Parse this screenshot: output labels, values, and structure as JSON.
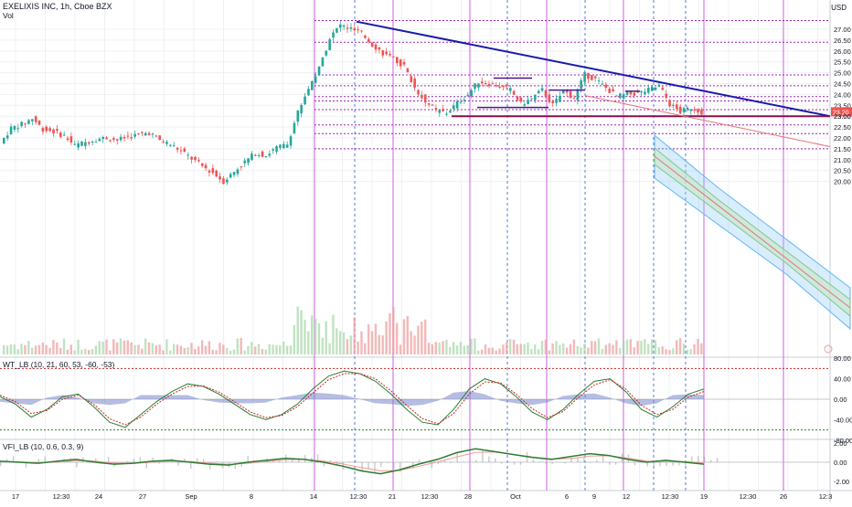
{
  "header": {
    "title": "EXELIXIS INC, 1h, Cboe BZX",
    "volume_label": "Vol",
    "currency": "USD"
  },
  "indicators": {
    "wt_label": "WT_LB (10, 21, 60, 53, -60, -53)",
    "vfi_label": "VFI_LB (10, 0.6, 0.3, 9)"
  },
  "colors": {
    "up": "#26a69a",
    "down": "#ef5350",
    "trend_main": "#1a1aa8",
    "support": "#880e4f",
    "dotted_level": "#9c27b0",
    "vertical_violet": "#d05ce3",
    "vertical_blue": "#5b7bd5",
    "channel_blue": "#90caf9",
    "channel_green": "#c8e6c9",
    "wt_green": "#2e7d32",
    "wt_red": "#c62828",
    "wt_area": "#7986cb",
    "vfi_line": "#2e7d32",
    "vfi_signal": "#ef9a9a",
    "last_price_badge": "#ef5350"
  },
  "chart_data": [
    {
      "type": "line",
      "title": "EXELIXIS INC, 1h, Cboe BZX",
      "series": [
        {
          "name": "",
          "values": [
            21.75,
            22.45,
            22.62,
            22.9,
            22.4,
            22.3,
            22.1,
            21.65,
            21.8,
            21.95,
            22.0,
            21.9,
            22.05,
            22.15,
            22.25,
            21.9,
            21.7,
            21.4,
            21.05,
            20.7,
            20.4,
            20.0,
            20.45,
            20.9,
            21.3,
            21.2,
            21.55,
            21.7,
            23.2,
            24.3,
            25.2,
            26.6,
            27.2,
            27.0,
            26.8,
            26.3,
            25.9,
            25.6,
            25.3,
            24.3,
            23.7,
            23.25,
            23.15,
            23.6,
            24.0,
            24.6,
            24.5,
            24.4,
            24.2,
            23.55,
            23.8,
            24.2,
            23.5,
            24.15,
            23.85,
            24.9,
            24.7,
            24.3,
            23.9,
            24.0,
            24.05,
            24.2,
            24.4,
            23.55,
            23.2,
            23.4,
            23.2
          ]
        }
      ],
      "y_ticks": [
        "27.00",
        "26.50",
        "26.00",
        "25.50",
        "25.00",
        "24.50",
        "24.00",
        "23.50",
        "23.00",
        "22.50",
        "22.00",
        "21.50",
        "21.00",
        "20.50",
        "20.00"
      ],
      "x_ticks": [
        "17",
        "12:30",
        "24",
        "27",
        "Sep",
        "8",
        "14",
        "12:30",
        "21",
        "12:30",
        "28",
        "Oct",
        "6",
        "9",
        "12",
        "12:30",
        "19",
        "12:30",
        "26",
        "12:3"
      ],
      "ylim": [
        19.7,
        27.6
      ],
      "last_price": "23.20",
      "support_level": "23.00",
      "level_lines": [
        27.4,
        26.4,
        24.9,
        24.4,
        23.9,
        23.7,
        23.3,
        22.6,
        22.2,
        21.5
      ],
      "grid": true
    },
    {
      "type": "line",
      "title": "WT_LB (10, 21, 60, 53, -60, -53)",
      "y_ticks": [
        "80.00",
        "40.00",
        "0.00",
        "-40.00",
        "-80.00"
      ],
      "ylim": [
        -95,
        95
      ],
      "series": [
        {
          "name": "",
          "values": [
            5,
            -10,
            -35,
            -20,
            5,
            10,
            -15,
            -45,
            -55,
            -30,
            -5,
            15,
            30,
            25,
            10,
            -10,
            -30,
            -40,
            -30,
            -10,
            20,
            45,
            55,
            50,
            35,
            10,
            -20,
            -45,
            -50,
            -20,
            20,
            40,
            30,
            5,
            -25,
            -40,
            -20,
            10,
            35,
            40,
            15,
            -20,
            -35,
            -15,
            10,
            20
          ]
        },
        {
          "name": "",
          "values": [
            8,
            -5,
            -28,
            -22,
            0,
            8,
            -10,
            -38,
            -50,
            -35,
            -10,
            10,
            25,
            26,
            14,
            -5,
            -25,
            -36,
            -32,
            -15,
            12,
            38,
            50,
            50,
            40,
            16,
            -12,
            -38,
            -48,
            -28,
            10,
            34,
            32,
            10,
            -18,
            -36,
            -24,
            4,
            28,
            38,
            20,
            -12,
            -30,
            -20,
            4,
            15
          ]
        }
      ]
    },
    {
      "type": "line",
      "title": "VFI_LB (10, 0.6, 0.3, 9)",
      "y_ticks": [
        "2.00",
        "0.00",
        "-2.00"
      ],
      "ylim": [
        -2.6,
        2.6
      ],
      "series": [
        {
          "name": "",
          "values": [
            0.1,
            0.0,
            -0.1,
            0.1,
            0.3,
            0.0,
            -0.2,
            -0.1,
            0.1,
            0.2,
            0.0,
            -0.2,
            -0.3,
            0.0,
            0.2,
            0.4,
            0.3,
            0.0,
            -0.4,
            -0.9,
            -1.2,
            -0.8,
            -0.2,
            0.3,
            1.0,
            1.4,
            1.1,
            0.8,
            0.5,
            0.3,
            0.6,
            0.9,
            0.7,
            0.3,
            0.0,
            0.2,
            0.0,
            -0.2
          ]
        }
      ]
    }
  ]
}
